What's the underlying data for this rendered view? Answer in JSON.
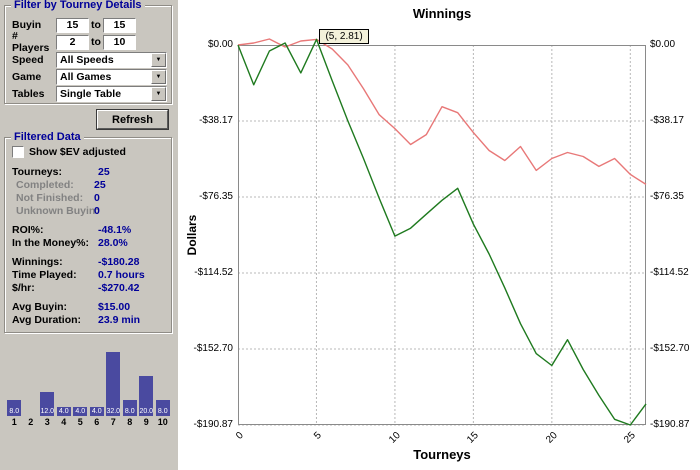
{
  "sidebar": {
    "filter": {
      "title": "Filter by Tourney Details",
      "buyin_label": "Buyin",
      "buyin_from": "15",
      "buyin_to": "15",
      "to_label": "to",
      "players_label": "# Players",
      "players_from": "2",
      "players_to": "10",
      "speed_label": "Speed",
      "speed_value": "All Speeds",
      "game_label": "Game",
      "game_value": "All Games",
      "tables_label": "Tables",
      "tables_value": "Single Table",
      "refresh_label": "Refresh"
    },
    "filtered": {
      "title": "Filtered Data",
      "show_ev_label": "Show $EV adjusted",
      "stats": [
        {
          "label": "Tourneys:",
          "value": "25"
        },
        {
          "label": "Completed:",
          "value": "25",
          "muted": true
        },
        {
          "label": "Not Finished:",
          "value": "0",
          "muted": true
        },
        {
          "label": "Unknown Buyin:",
          "value": "0",
          "muted": true
        },
        {
          "label": "ROI%:",
          "value": "-48.1%",
          "gap": true
        },
        {
          "label": "In the Money%:",
          "value": "28.0%"
        },
        {
          "label": "Winnings:",
          "value": "-$180.28",
          "gap": true
        },
        {
          "label": "Time Played:",
          "value": "0.7 hours"
        },
        {
          "label": "$/hr:",
          "value": "-$270.42"
        },
        {
          "label": "Avg Buyin:",
          "value": "$15.00",
          "gap": true
        },
        {
          "label": "Avg Duration:",
          "value": "23.9 min"
        }
      ]
    },
    "histogram": {
      "bar_color": "#4a4aa0",
      "values": [
        8,
        0,
        12,
        4,
        4,
        4,
        32,
        8,
        20,
        8
      ],
      "value_labels": [
        "8.0",
        "",
        "12.0",
        "4.0",
        "4.0",
        "4.0",
        "32.0",
        "8.0",
        "20.0",
        "8.0"
      ],
      "x_labels": [
        "1",
        "2",
        "3",
        "4",
        "5",
        "6",
        "7",
        "8",
        "9",
        "10"
      ]
    }
  },
  "chart_data": {
    "type": "line",
    "title": "Winnings",
    "xlabel": "Tourneys",
    "ylabel": "Dollars",
    "xlim": [
      0,
      26
    ],
    "ylim": [
      -190.87,
      0
    ],
    "grid": true,
    "tooltip": {
      "text": "(5, 2.81)",
      "x": 5,
      "y": 2.81
    },
    "yticks": [
      {
        "value": 0,
        "label": "$0.00"
      },
      {
        "value": -38.17,
        "label": "-$38.17"
      },
      {
        "value": -76.35,
        "label": "-$76.35"
      },
      {
        "value": -114.52,
        "label": "-$114.52"
      },
      {
        "value": -152.7,
        "label": "-$152.70"
      },
      {
        "value": -190.87,
        "label": "-$190.87"
      }
    ],
    "xticks": [
      {
        "value": 0,
        "label": "0"
      },
      {
        "value": 5,
        "label": "5"
      },
      {
        "value": 10,
        "label": "10"
      },
      {
        "value": 15,
        "label": "15"
      },
      {
        "value": 20,
        "label": "20"
      },
      {
        "value": 25,
        "label": "25"
      }
    ],
    "series": [
      {
        "name": "red-line",
        "color": "#e87878",
        "y": [
          0,
          1,
          3,
          -1,
          2,
          2.81,
          -2,
          -10,
          -22,
          -35,
          -42,
          -50,
          -45,
          -31,
          -34,
          -44,
          -53,
          -58,
          -51,
          -63,
          -57,
          -54,
          -56,
          -61,
          -57,
          -65,
          -70
        ]
      },
      {
        "name": "green-line",
        "color": "#1f7a1f",
        "y": [
          0,
          -20,
          -3,
          1,
          -14,
          2.81,
          -18,
          -38,
          -57,
          -77,
          -96,
          -92,
          -85,
          -78,
          -72,
          -90,
          -105,
          -122,
          -140,
          -155,
          -161,
          -148,
          -163,
          -176,
          -188,
          -190.87,
          -180.28
        ]
      }
    ]
  }
}
